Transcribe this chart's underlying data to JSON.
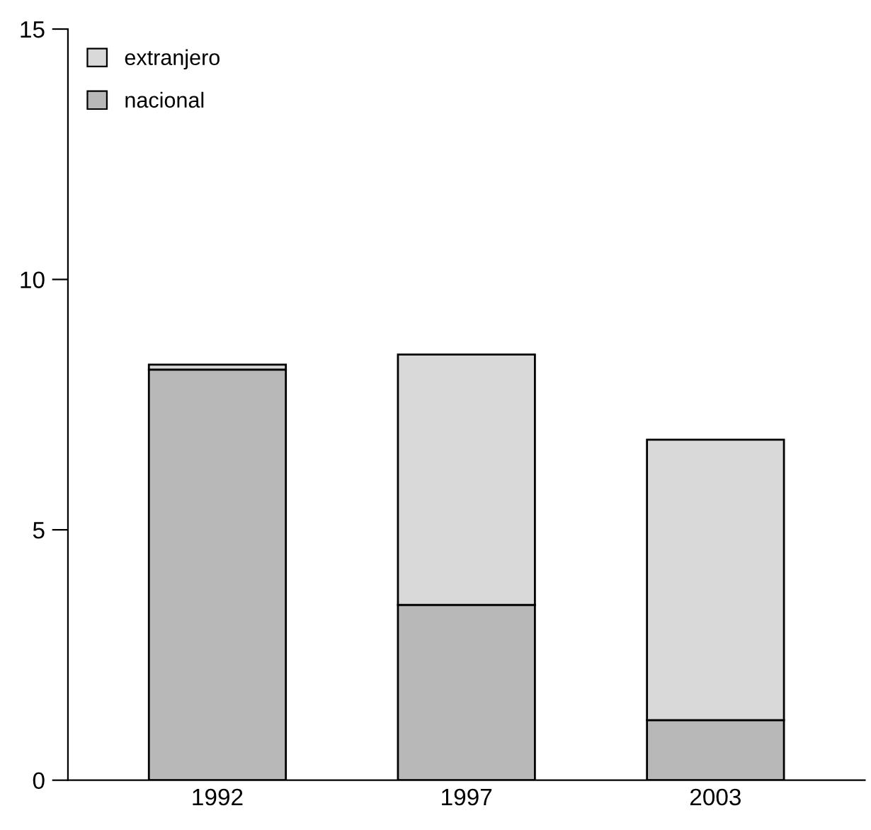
{
  "chart_data": {
    "type": "bar",
    "stacked": true,
    "categories": [
      "1992",
      "1997",
      "2003"
    ],
    "series": [
      {
        "name": "nacional",
        "color": "#b8b8b8",
        "values": [
          8.2,
          3.5,
          1.2
        ]
      },
      {
        "name": "extranjero",
        "color": "#d9d9d9",
        "values": [
          0.1,
          5.0,
          5.6
        ]
      }
    ],
    "ylim": [
      0,
      15
    ],
    "yticks": [
      0,
      5,
      10,
      15
    ],
    "legend": "top left"
  }
}
